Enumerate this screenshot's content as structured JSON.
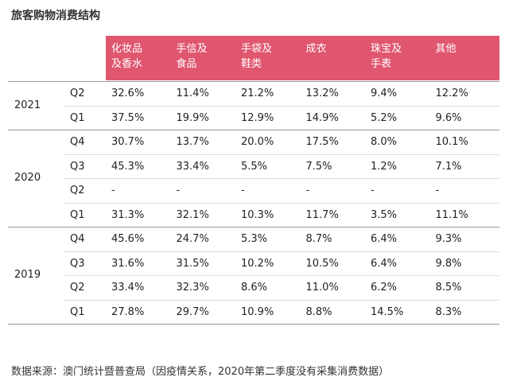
{
  "title": "旅客购物消费结构",
  "table": {
    "header": [
      "化妆品\n及香水",
      "手信及\n食品",
      "手袋及\n鞋类",
      "成衣",
      "珠宝及\n手表",
      "其他"
    ],
    "groups": [
      {
        "year": "2021",
        "rows": [
          {
            "quarter": "Q2",
            "cells": [
              "32.6%",
              "11.4%",
              "21.2%",
              "13.2%",
              "9.4%",
              "12.2%"
            ]
          },
          {
            "quarter": "Q1",
            "cells": [
              "37.5%",
              "19.9%",
              "12.9%",
              "14.9%",
              "5.2%",
              "9.6%"
            ]
          }
        ]
      },
      {
        "year": "2020",
        "rows": [
          {
            "quarter": "Q4",
            "cells": [
              "30.7%",
              "13.7%",
              "20.0%",
              "17.5%",
              "8.0%",
              "10.1%"
            ]
          },
          {
            "quarter": "Q3",
            "cells": [
              "45.3%",
              "33.4%",
              "5.5%",
              "7.5%",
              "1.2%",
              "7.1%"
            ]
          },
          {
            "quarter": "Q2",
            "cells": [
              "-",
              "-",
              "-",
              "-",
              "-",
              "-"
            ]
          },
          {
            "quarter": "Q1",
            "cells": [
              "31.3%",
              "32.1%",
              "10.3%",
              "11.7%",
              "3.5%",
              "11.1%"
            ]
          }
        ]
      },
      {
        "year": "2019",
        "rows": [
          {
            "quarter": "Q4",
            "cells": [
              "45.6%",
              "24.7%",
              "5.3%",
              "8.7%",
              "6.4%",
              "9.3%"
            ]
          },
          {
            "quarter": "Q3",
            "cells": [
              "31.6%",
              "31.5%",
              "10.2%",
              "10.5%",
              "6.4%",
              "9.8%"
            ]
          },
          {
            "quarter": "Q2",
            "cells": [
              "33.4%",
              "32.3%",
              "8.6%",
              "11.0%",
              "6.2%",
              "8.5%"
            ]
          },
          {
            "quarter": "Q1",
            "cells": [
              "27.8%",
              "29.7%",
              "10.9%",
              "8.8%",
              "14.5%",
              "8.3%"
            ]
          }
        ]
      }
    ]
  },
  "source": "数据来源：澳门统计暨普查局（因疫情关系，2020年第二季度没有采集消费数据）"
}
